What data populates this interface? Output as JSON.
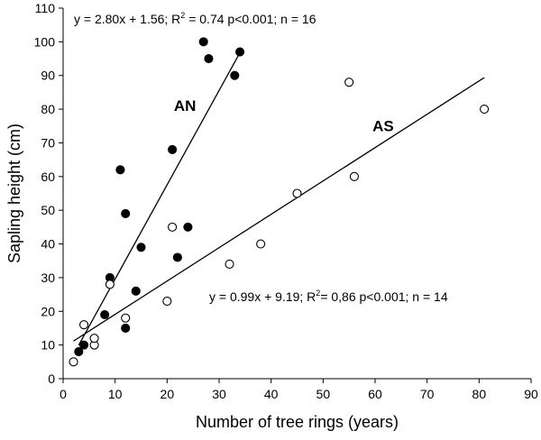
{
  "chart_data": {
    "type": "scatter",
    "title": "",
    "xlabel": "Number of tree rings (years)",
    "ylabel": "Sapling height (cm)",
    "xlim": [
      0,
      90
    ],
    "ylim": [
      0,
      110
    ],
    "xticks": [
      0,
      10,
      20,
      30,
      40,
      50,
      60,
      70,
      80,
      90
    ],
    "yticks": [
      0,
      10,
      20,
      30,
      40,
      50,
      60,
      70,
      80,
      90,
      100,
      110
    ],
    "grid": false,
    "series": [
      {
        "name": "AN",
        "marker": "filled-circle",
        "color": "#000000",
        "points": [
          [
            3,
            8
          ],
          [
            4,
            10
          ],
          [
            8,
            19
          ],
          [
            9,
            30
          ],
          [
            11,
            62
          ],
          [
            12,
            49
          ],
          [
            12,
            15
          ],
          [
            14,
            26
          ],
          [
            15,
            39
          ],
          [
            21,
            68
          ],
          [
            22,
            36
          ],
          [
            24,
            45
          ],
          [
            27,
            100
          ],
          [
            28,
            95
          ],
          [
            33,
            90
          ],
          [
            34,
            97
          ]
        ],
        "fit": {
          "slope": 2.8,
          "intercept": 1.56,
          "x_range": [
            3,
            34
          ]
        },
        "equation_prefix": "y = 2.80x + 1.56; R",
        "equation_sup": "2",
        "equation_suffix": " = 0.74 p<0.001; n = 16"
      },
      {
        "name": "AS",
        "marker": "open-circle",
        "color": "#000000",
        "points": [
          [
            2,
            5
          ],
          [
            4,
            16
          ],
          [
            6,
            10
          ],
          [
            6,
            12
          ],
          [
            9,
            28
          ],
          [
            12,
            18
          ],
          [
            20,
            23
          ],
          [
            21,
            45
          ],
          [
            32,
            34
          ],
          [
            38,
            40
          ],
          [
            45,
            55
          ],
          [
            55,
            88
          ],
          [
            56,
            60
          ],
          [
            81,
            80
          ]
        ],
        "fit": {
          "slope": 0.99,
          "intercept": 9.19,
          "x_range": [
            2,
            81
          ]
        },
        "equation_prefix": "y = 0.99x + 9.19;  R",
        "equation_sup": "2",
        "equation_suffix": "= 0,86  p<0.001; n = 14"
      }
    ]
  }
}
